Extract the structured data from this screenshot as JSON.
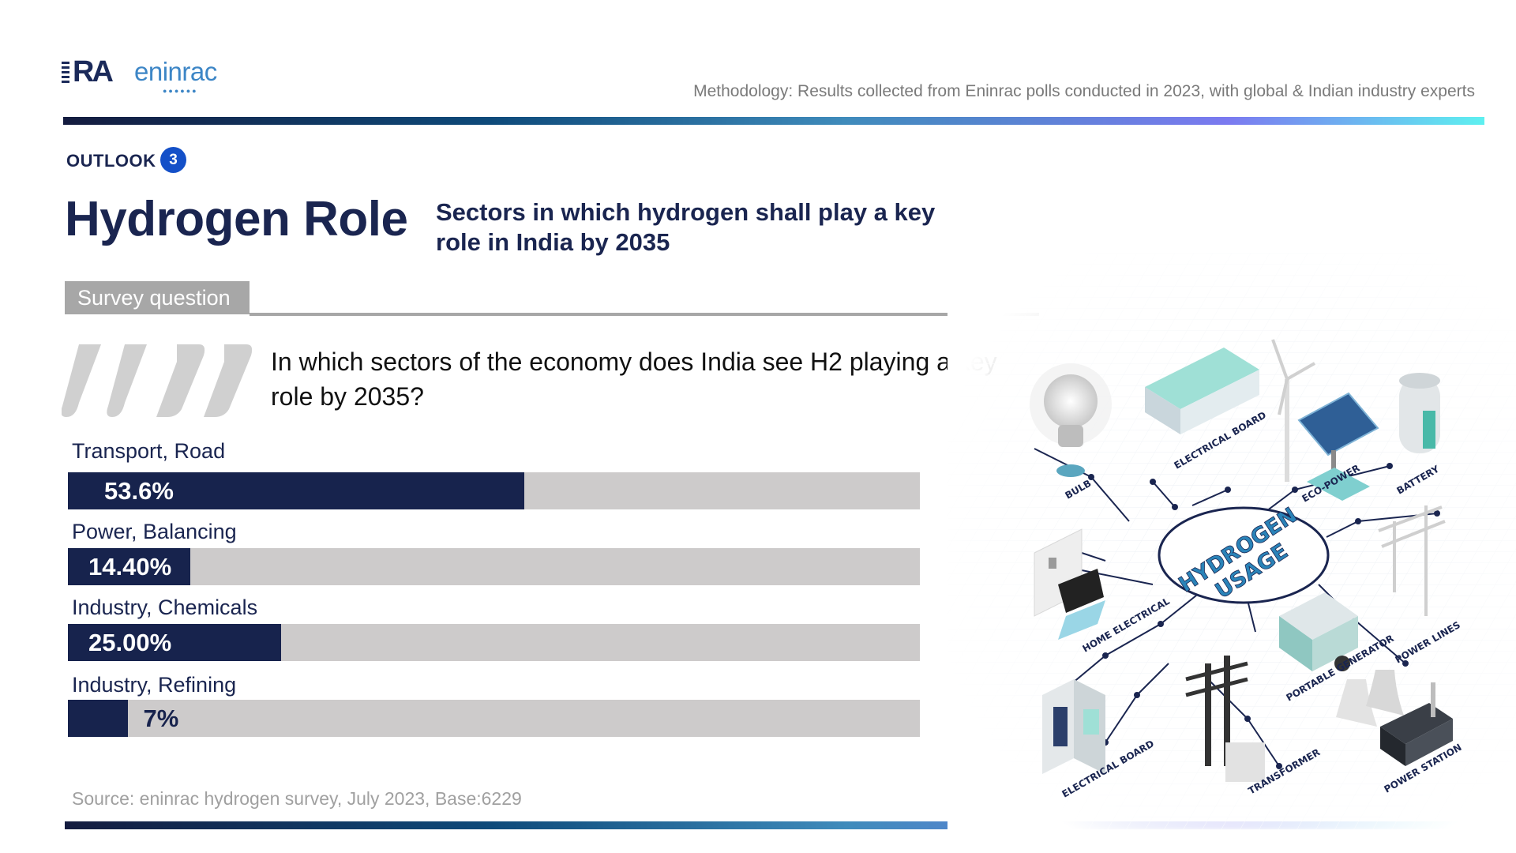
{
  "brand": {
    "logo_text_ra": "RA",
    "logo_text_en": "eninrac",
    "accent": "#3d86c6"
  },
  "header": {
    "methodology": "Methodology: Results collected from Eninrac polls conducted in 2023, with global & Indian industry experts"
  },
  "section": {
    "label": "OUTLOOK",
    "number": "3",
    "badge_color": "#1450c8"
  },
  "title": "Hydrogen Role",
  "subtitle": "Sectors in which hydrogen shall play a key role in India by 2035",
  "survey": {
    "tag": "Survey question",
    "question": "In which sectors of the economy does India see H2 playing a key role by 2035?"
  },
  "chart_data": {
    "type": "bar",
    "orientation": "horizontal",
    "categories": [
      "Transport, Road",
      "Power, Balancing",
      "Industry, Chemicals",
      "Industry, Refining"
    ],
    "values": [
      53.6,
      14.4,
      25.0,
      7
    ],
    "value_labels": [
      "53.6%",
      "14.40%",
      "25.00%",
      "7%"
    ],
    "xlim": [
      0,
      100
    ],
    "colors": {
      "bar": "#17234d",
      "track": "#cdcbcb"
    }
  },
  "source": "Source: eninrac hydrogen survey, July 2023, Base:6229",
  "illustration": {
    "center_label_1": "HYDROGEN",
    "center_label_2": "USAGE",
    "items": [
      "BULB",
      "ELECTRICAL BOARD",
      "ECO-POWER",
      "BATTERY",
      "HOME ELECTRICAL",
      "PORTABLE GENERATOR",
      "POWER LINES",
      "ELECTRICAL BOARD",
      "TRANSFORMER",
      "POWER STATION"
    ]
  }
}
